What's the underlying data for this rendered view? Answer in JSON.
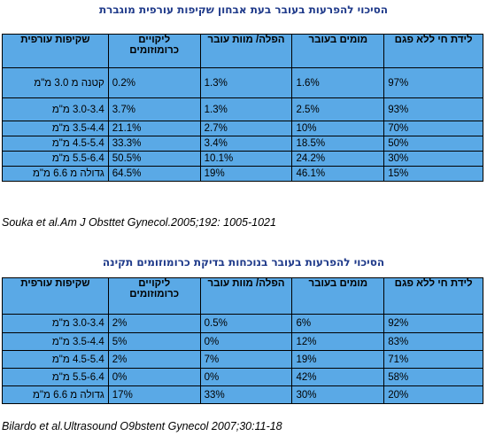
{
  "table1": {
    "title": "הסיכוי להפרעות בעובר בעת אבחון שקיפות עורפית מוגברת",
    "headers": [
      "לידת חי ללא פגם",
      "מומים בעובר",
      "הפלה/ מוות עובר",
      "ליקויים כרומוזומים",
      "שקיפות עורפית"
    ],
    "rows": [
      [
        "97%",
        "1.6%",
        "1.3%",
        "0.2%",
        "קטנה מ 3.0 מ\"מ"
      ],
      [
        "93%",
        "2.5%",
        "1.3%",
        "3.7%",
        "3.0-3.4 מ\"מ"
      ],
      [
        "70%",
        "10%",
        "2.7%",
        "21.1%",
        "3.5-4.4 מ\"מ"
      ],
      [
        "50%",
        "18.5%",
        "3.4%",
        "33.3%",
        "4.5-5.4 מ\"מ"
      ],
      [
        "30%",
        "24.2%",
        "10.1%",
        "50.5%",
        "5.5-6.4 מ\"מ"
      ],
      [
        "15%",
        "46.1%",
        "19%",
        "64.5%",
        "גדולה מ 6.6 מ\"מ"
      ]
    ],
    "citation": "Souka et al.Am J Obsttet Gynecol.2005;192: 1005-1021"
  },
  "table2": {
    "title": "הסיכוי להפרעות בעובר בנוכחות בדיקת כרומוזומים תקינה",
    "headers": [
      "לידת חי ללא פגם",
      "מומים בעובר",
      "הפלה/ מוות עובר",
      "ליקויים כרומוזומים",
      "שקיפות עורפית"
    ],
    "rows": [
      [
        "92%",
        "6%",
        "0.5%",
        "2%",
        "3.0-3.4 מ\"מ"
      ],
      [
        "83%",
        "12%",
        "0%",
        "5%",
        "3.5-4.4 מ\"מ"
      ],
      [
        "71%",
        "19%",
        "7%",
        "2%",
        "4.5-5.4 מ\"מ"
      ],
      [
        "58%",
        "42%",
        "0%",
        "0%",
        "5.5-6.4 מ\"מ"
      ],
      [
        "20%",
        "30%",
        "33%",
        "17%",
        "גדולה מ 6.6 מ\"מ"
      ]
    ],
    "citation": "Bilardo et al.Ultrasound O9bstent Gynecol 2007;30:11-18"
  }
}
